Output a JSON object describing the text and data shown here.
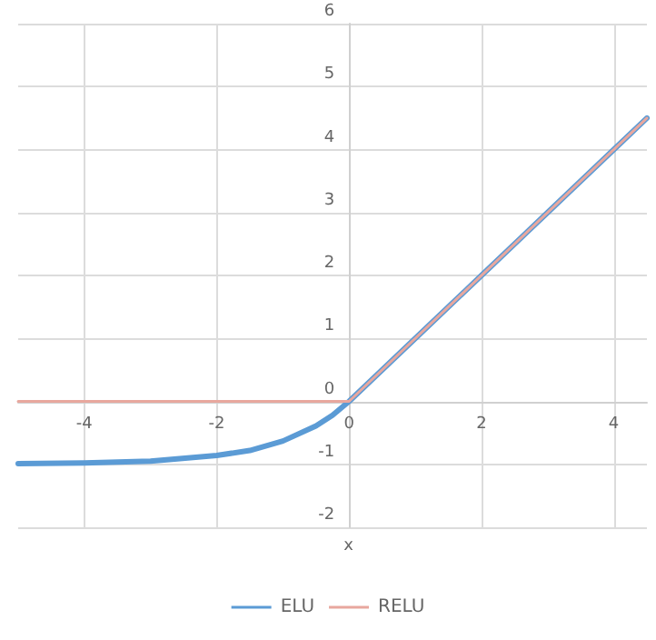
{
  "chart_data": {
    "type": "line",
    "xlabel": "x",
    "series": [
      {
        "name": "ELU",
        "color": "#5b9bd5",
        "x": [
          -5,
          -4,
          -3,
          -2,
          -1.5,
          -1,
          -0.5,
          -0.25,
          0,
          1,
          2,
          3,
          4,
          4.5
        ],
        "values": [
          -0.99,
          -0.98,
          -0.95,
          -0.86,
          -0.78,
          -0.63,
          -0.39,
          -0.22,
          0,
          1,
          2,
          3,
          4,
          4.5
        ]
      },
      {
        "name": "RELU",
        "color": "#e8a79e",
        "x": [
          -5,
          0,
          4.5
        ],
        "values": [
          0,
          0,
          4.5
        ]
      }
    ],
    "xlim": [
      -5,
      4.5
    ],
    "xticks": [
      -4,
      -2,
      0,
      2,
      4
    ],
    "ylim": [
      -2,
      6
    ],
    "yticks": [
      -2,
      -1,
      0,
      1,
      2,
      3,
      4,
      5,
      6
    ],
    "grid": true,
    "legend": "bottom",
    "marker": "none",
    "line_style": "solid"
  }
}
